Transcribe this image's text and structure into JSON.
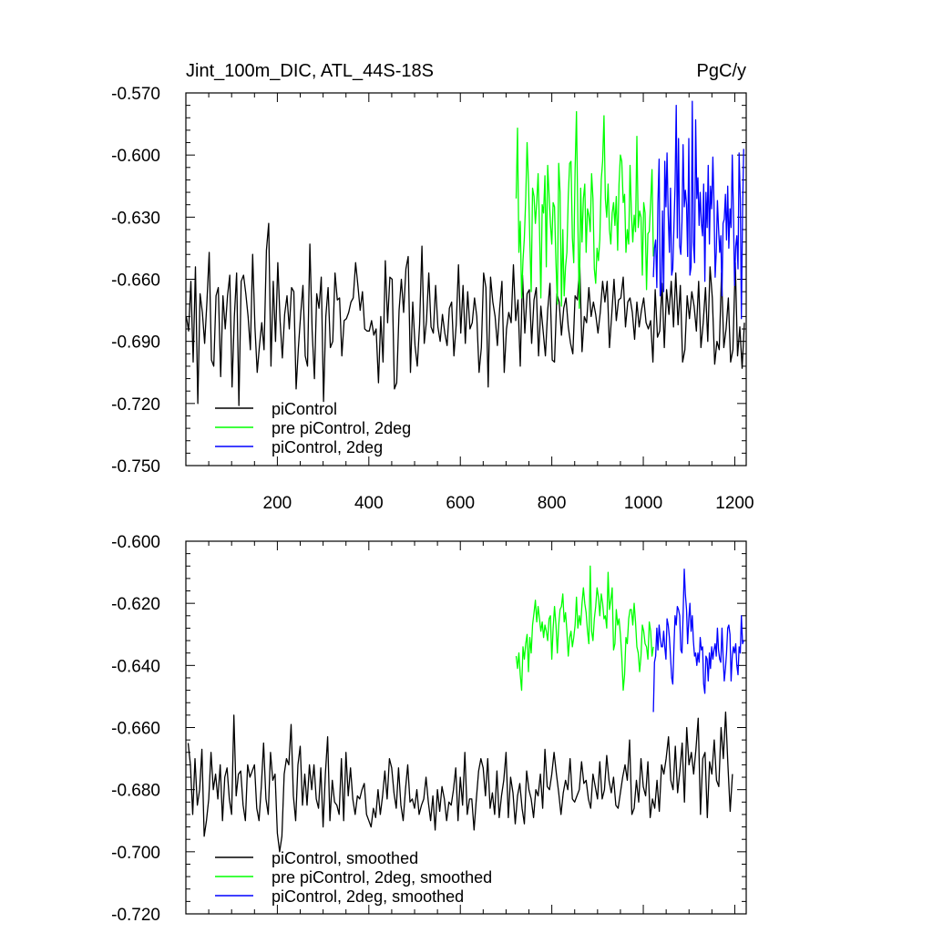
{
  "header": {
    "title": "Jint_100m_DIC, ATL_44S-18S",
    "units": "PgC/y"
  },
  "chart_data": [
    {
      "type": "line",
      "title": "Jint_100m_DIC, ATL_44S-18S",
      "units": "PgC/y",
      "xlim": [
        0,
        1225
      ],
      "ylim": [
        -0.75,
        -0.57
      ],
      "xticks": [
        200,
        400,
        600,
        800,
        1000,
        1200
      ],
      "xtick_labels": [
        "200",
        "400",
        "600",
        "800",
        "1000",
        "1200"
      ],
      "yticks": [
        -0.75,
        -0.72,
        -0.69,
        -0.66,
        -0.63,
        -0.6,
        -0.57
      ],
      "ytick_labels": [
        "-0.750",
        "-0.720",
        "-0.690",
        "-0.660",
        "-0.630",
        "-0.600",
        "-0.570"
      ],
      "legend_position": "bottom-left",
      "legend": [
        "piControl",
        "pre piControl, 2deg",
        "piControl, 2deg"
      ],
      "series": [
        {
          "name": "piControl",
          "color": "#000000",
          "x_start": 1,
          "x_step": 5,
          "values": [
            -0.678,
            -0.685,
            -0.661,
            -0.7,
            -0.654,
            -0.72,
            -0.667,
            -0.676,
            -0.691,
            -0.671,
            -0.647,
            -0.699,
            -0.702,
            -0.668,
            -0.664,
            -0.707,
            -0.668,
            -0.684,
            -0.668,
            -0.658,
            -0.712,
            -0.678,
            -0.657,
            -0.721,
            -0.661,
            -0.658,
            -0.667,
            -0.678,
            -0.694,
            -0.648,
            -0.683,
            -0.705,
            -0.692,
            -0.681,
            -0.694,
            -0.646,
            -0.633,
            -0.702,
            -0.661,
            -0.69,
            -0.652,
            -0.68,
            -0.698,
            -0.677,
            -0.668,
            -0.684,
            -0.664,
            -0.666,
            -0.713,
            -0.693,
            -0.677,
            -0.663,
            -0.697,
            -0.702,
            -0.643,
            -0.685,
            -0.708,
            -0.667,
            -0.674,
            -0.659,
            -0.719,
            -0.678,
            -0.664,
            -0.693,
            -0.69,
            -0.657,
            -0.67,
            -0.669,
            -0.697,
            -0.68,
            -0.679,
            -0.676,
            -0.671,
            -0.669,
            -0.652,
            -0.663,
            -0.675,
            -0.666,
            -0.684,
            -0.685,
            -0.685,
            -0.68,
            -0.687,
            -0.684,
            -0.71,
            -0.678,
            -0.7,
            -0.651,
            -0.681,
            -0.659,
            -0.66,
            -0.713,
            -0.71,
            -0.675,
            -0.66,
            -0.676,
            -0.655,
            -0.649,
            -0.705,
            -0.671,
            -0.692,
            -0.702,
            -0.682,
            -0.644,
            -0.691,
            -0.68,
            -0.657,
            -0.683,
            -0.686,
            -0.663,
            -0.683,
            -0.69,
            -0.677,
            -0.686,
            -0.692,
            -0.674,
            -0.671,
            -0.697,
            -0.682,
            -0.653,
            -0.686,
            -0.663,
            -0.691,
            -0.666,
            -0.684,
            -0.681,
            -0.669,
            -0.678,
            -0.705,
            -0.693,
            -0.657,
            -0.664,
            -0.712,
            -0.659,
            -0.671,
            -0.678,
            -0.692,
            -0.674,
            -0.661,
            -0.705,
            -0.684,
            -0.676,
            -0.681,
            -0.653,
            -0.68,
            -0.67,
            -0.702,
            -0.658,
            -0.686,
            -0.667,
            -0.665,
            -0.691,
            -0.67,
            -0.664,
            -0.697,
            -0.673,
            -0.685,
            -0.697,
            -0.675,
            -0.662,
            -0.699,
            -0.7,
            -0.667,
            -0.671,
            -0.687,
            -0.674,
            -0.669,
            -0.683,
            -0.691,
            -0.696,
            -0.668,
            -0.67,
            -0.653,
            -0.695,
            -0.678,
            -0.681,
            -0.664,
            -0.678,
            -0.671,
            -0.677,
            -0.686,
            -0.676,
            -0.661,
            -0.671,
            -0.661,
            -0.693,
            -0.677,
            -0.66,
            -0.68,
            -0.67,
            -0.669,
            -0.659,
            -0.683,
            -0.671,
            -0.669,
            -0.676,
            -0.689,
            -0.671,
            -0.683,
            -0.675,
            -0.669,
            -0.681,
            -0.684,
            -0.68,
            -0.7,
            -0.665,
            -0.688,
            -0.685,
            -0.662,
            -0.693,
            -0.665,
            -0.677,
            -0.661,
            -0.683,
            -0.657,
            -0.682,
            -0.663,
            -0.7,
            -0.694,
            -0.668,
            -0.679,
            -0.666,
            -0.673,
            -0.685,
            -0.661,
            -0.693,
            -0.681,
            -0.664,
            -0.69,
            -0.654,
            -0.669,
            -0.701,
            -0.69,
            -0.694,
            -0.657,
            -0.693,
            -0.684,
            -0.669,
            -0.7,
            -0.694,
            -0.652,
            -0.697,
            -0.683,
            -0.703,
            -0.681
          ]
        },
        {
          "name": "pre piControl, 2deg",
          "color": "#00ff00",
          "x_start": 722,
          "x_step": 3,
          "values": [
            -0.621,
            -0.587,
            -0.647,
            -0.632,
            -0.669,
            -0.651,
            -0.64,
            -0.621,
            -0.594,
            -0.613,
            -0.641,
            -0.666,
            -0.616,
            -0.62,
            -0.633,
            -0.623,
            -0.609,
            -0.635,
            -0.669,
            -0.624,
            -0.628,
            -0.61,
            -0.654,
            -0.605,
            -0.619,
            -0.633,
            -0.643,
            -0.623,
            -0.625,
            -0.652,
            -0.672,
            -0.604,
            -0.618,
            -0.673,
            -0.636,
            -0.668,
            -0.654,
            -0.647,
            -0.62,
            -0.604,
            -0.603,
            -0.64,
            -0.652,
            -0.607,
            -0.579,
            -0.631,
            -0.674,
            -0.616,
            -0.642,
            -0.621,
            -0.614,
            -0.647,
            -0.626,
            -0.629,
            -0.637,
            -0.609,
            -0.621,
            -0.655,
            -0.662,
            -0.645,
            -0.651,
            -0.641,
            -0.612,
            -0.603,
            -0.581,
            -0.621,
            -0.63,
            -0.614,
            -0.636,
            -0.643,
            -0.628,
            -0.623,
            -0.634,
            -0.62,
            -0.646,
            -0.614,
            -0.6,
            -0.603,
            -0.623,
            -0.619,
            -0.647,
            -0.636,
            -0.643,
            -0.605,
            -0.628,
            -0.642,
            -0.629,
            -0.637,
            -0.591,
            -0.635,
            -0.627,
            -0.63,
            -0.658,
            -0.623,
            -0.628,
            -0.665,
            -0.638,
            -0.637,
            -0.623,
            -0.607,
            -0.649
          ]
        },
        {
          "name": "piControl, 2deg",
          "color": "#0000ff",
          "x_start": 1022,
          "x_step": 2.5,
          "values": [
            -0.659,
            -0.645,
            -0.641,
            -0.664,
            -0.623,
            -0.602,
            -0.668,
            -0.665,
            -0.627,
            -0.666,
            -0.603,
            -0.625,
            -0.599,
            -0.629,
            -0.647,
            -0.616,
            -0.658,
            -0.655,
            -0.634,
            -0.615,
            -0.576,
            -0.64,
            -0.592,
            -0.644,
            -0.648,
            -0.632,
            -0.595,
            -0.625,
            -0.617,
            -0.624,
            -0.649,
            -0.592,
            -0.658,
            -0.654,
            -0.574,
            -0.642,
            -0.652,
            -0.583,
            -0.621,
            -0.611,
            -0.634,
            -0.618,
            -0.633,
            -0.639,
            -0.614,
            -0.661,
            -0.618,
            -0.635,
            -0.605,
            -0.643,
            -0.615,
            -0.626,
            -0.601,
            -0.623,
            -0.659,
            -0.647,
            -0.622,
            -0.635,
            -0.647,
            -0.639,
            -0.668,
            -0.633,
            -0.631,
            -0.619,
            -0.641,
            -0.615,
            -0.645,
            -0.626,
            -0.635,
            -0.6,
            -0.626,
            -0.663,
            -0.644,
            -0.639,
            -0.655,
            -0.599,
            -0.621,
            -0.679,
            -0.627,
            -0.597
          ]
        }
      ]
    },
    {
      "type": "line",
      "xlim": [
        0,
        1225
      ],
      "ylim": [
        -0.72,
        -0.6
      ],
      "xticks": [
        200,
        400,
        600,
        800,
        1000,
        1200
      ],
      "yticks": [
        -0.72,
        -0.7,
        -0.68,
        -0.66,
        -0.64,
        -0.62,
        -0.6
      ],
      "ytick_labels": [
        "-0.720",
        "-0.700",
        "-0.680",
        "-0.660",
        "-0.640",
        "-0.620",
        "-0.600"
      ],
      "legend_position": "bottom-left",
      "legend": [
        "piControl, smoothed",
        "pre piControl, 2deg, smoothed",
        "piControl, 2deg, smoothed"
      ],
      "series": [
        {
          "name": "piControl, smoothed",
          "color": "#000000",
          "x_start": 5,
          "x_step": 5,
          "values": [
            -0.665,
            -0.672,
            -0.688,
            -0.67,
            -0.685,
            -0.68,
            -0.667,
            -0.695,
            -0.69,
            -0.683,
            -0.668,
            -0.68,
            -0.675,
            -0.683,
            -0.672,
            -0.69,
            -0.676,
            -0.673,
            -0.683,
            -0.688,
            -0.656,
            -0.682,
            -0.675,
            -0.674,
            -0.685,
            -0.69,
            -0.672,
            -0.676,
            -0.674,
            -0.672,
            -0.686,
            -0.69,
            -0.679,
            -0.665,
            -0.683,
            -0.688,
            -0.668,
            -0.677,
            -0.675,
            -0.694,
            -0.7,
            -0.695,
            -0.675,
            -0.67,
            -0.672,
            -0.659,
            -0.682,
            -0.69,
            -0.672,
            -0.666,
            -0.685,
            -0.675,
            -0.685,
            -0.672,
            -0.68,
            -0.672,
            -0.683,
            -0.686,
            -0.673,
            -0.692,
            -0.675,
            -0.663,
            -0.69,
            -0.677,
            -0.684,
            -0.685,
            -0.688,
            -0.67,
            -0.69,
            -0.668,
            -0.682,
            -0.673,
            -0.683,
            -0.688,
            -0.682,
            -0.683,
            -0.68,
            -0.678,
            -0.688,
            -0.69,
            -0.692,
            -0.686,
            -0.689,
            -0.68,
            -0.688,
            -0.682,
            -0.674,
            -0.683,
            -0.67,
            -0.673,
            -0.681,
            -0.686,
            -0.673,
            -0.685,
            -0.69,
            -0.68,
            -0.672,
            -0.684,
            -0.683,
            -0.686,
            -0.68,
            -0.688,
            -0.685,
            -0.683,
            -0.676,
            -0.684,
            -0.69,
            -0.682,
            -0.693,
            -0.68,
            -0.687,
            -0.679,
            -0.683,
            -0.69,
            -0.684,
            -0.685,
            -0.68,
            -0.673,
            -0.69,
            -0.676,
            -0.685,
            -0.668,
            -0.688,
            -0.683,
            -0.683,
            -0.693,
            -0.683,
            -0.674,
            -0.67,
            -0.673,
            -0.682,
            -0.67,
            -0.686,
            -0.681,
            -0.688,
            -0.674,
            -0.689,
            -0.682,
            -0.677,
            -0.668,
            -0.689,
            -0.676,
            -0.681,
            -0.691,
            -0.682,
            -0.678,
            -0.686,
            -0.691,
            -0.674,
            -0.68,
            -0.683,
            -0.689,
            -0.68,
            -0.682,
            -0.675,
            -0.686,
            -0.667,
            -0.679,
            -0.68,
            -0.675,
            -0.668,
            -0.675,
            -0.681,
            -0.688,
            -0.681,
            -0.677,
            -0.68,
            -0.67,
            -0.683,
            -0.684,
            -0.682,
            -0.68,
            -0.671,
            -0.678,
            -0.677,
            -0.683,
            -0.686,
            -0.675,
            -0.679,
            -0.683,
            -0.671,
            -0.683,
            -0.68,
            -0.669,
            -0.677,
            -0.681,
            -0.676,
            -0.685,
            -0.686,
            -0.681,
            -0.676,
            -0.672,
            -0.677,
            -0.664,
            -0.688,
            -0.686,
            -0.677,
            -0.684,
            -0.67,
            -0.679,
            -0.682,
            -0.671,
            -0.689,
            -0.683,
            -0.686,
            -0.677,
            -0.687,
            -0.672,
            -0.675,
            -0.67,
            -0.663,
            -0.677,
            -0.68,
            -0.666,
            -0.681,
            -0.674,
            -0.665,
            -0.684,
            -0.66,
            -0.672,
            -0.668,
            -0.675,
            -0.667,
            -0.657,
            -0.688,
            -0.67,
            -0.668,
            -0.689,
            -0.671,
            -0.675,
            -0.664,
            -0.677,
            -0.679,
            -0.66,
            -0.67,
            -0.655,
            -0.672,
            -0.687,
            -0.675
          ]
        },
        {
          "name": "pre piControl, 2deg, smoothed",
          "color": "#00ff00",
          "x_start": 722,
          "x_step": 3,
          "values": [
            -0.637,
            -0.641,
            -0.636,
            -0.643,
            -0.648,
            -0.634,
            -0.638,
            -0.633,
            -0.63,
            -0.642,
            -0.631,
            -0.636,
            -0.627,
            -0.623,
            -0.619,
            -0.626,
            -0.621,
            -0.625,
            -0.629,
            -0.626,
            -0.631,
            -0.627,
            -0.629,
            -0.632,
            -0.625,
            -0.624,
            -0.638,
            -0.628,
            -0.621,
            -0.627,
            -0.636,
            -0.627,
            -0.622,
            -0.621,
            -0.617,
            -0.626,
            -0.623,
            -0.629,
            -0.637,
            -0.631,
            -0.629,
            -0.634,
            -0.631,
            -0.627,
            -0.618,
            -0.628,
            -0.624,
            -0.627,
            -0.62,
            -0.615,
            -0.62,
            -0.623,
            -0.629,
            -0.633,
            -0.608,
            -0.629,
            -0.632,
            -0.625,
            -0.621,
            -0.615,
            -0.618,
            -0.624,
            -0.617,
            -0.62,
            -0.625,
            -0.624,
            -0.628,
            -0.61,
            -0.622,
            -0.619,
            -0.615,
            -0.635,
            -0.633,
            -0.622,
            -0.627,
            -0.625,
            -0.63,
            -0.637,
            -0.648,
            -0.643,
            -0.631,
            -0.633,
            -0.625,
            -0.622,
            -0.622,
            -0.627,
            -0.62,
            -0.626,
            -0.634,
            -0.636,
            -0.642,
            -0.637,
            -0.627,
            -0.629,
            -0.633,
            -0.634,
            -0.638,
            -0.626,
            -0.629,
            -0.637,
            -0.634
          ]
        },
        {
          "name": "piControl, 2deg, smoothed",
          "color": "#0000ff",
          "x_start": 1022,
          "x_step": 2.5,
          "values": [
            -0.655,
            -0.639,
            -0.637,
            -0.628,
            -0.635,
            -0.627,
            -0.631,
            -0.634,
            -0.634,
            -0.629,
            -0.634,
            -0.638,
            -0.625,
            -0.627,
            -0.631,
            -0.637,
            -0.644,
            -0.646,
            -0.634,
            -0.624,
            -0.627,
            -0.621,
            -0.622,
            -0.624,
            -0.635,
            -0.636,
            -0.624,
            -0.609,
            -0.617,
            -0.622,
            -0.633,
            -0.625,
            -0.62,
            -0.629,
            -0.624,
            -0.632,
            -0.637,
            -0.636,
            -0.64,
            -0.636,
            -0.639,
            -0.631,
            -0.635,
            -0.634,
            -0.646,
            -0.649,
            -0.637,
            -0.638,
            -0.645,
            -0.636,
            -0.641,
            -0.634,
            -0.638,
            -0.635,
            -0.633,
            -0.637,
            -0.628,
            -0.635,
            -0.638,
            -0.639,
            -0.628,
            -0.637,
            -0.645,
            -0.641,
            -0.636,
            -0.628,
            -0.627,
            -0.63,
            -0.645,
            -0.637,
            -0.634,
            -0.636,
            -0.633,
            -0.64,
            -0.643,
            -0.634,
            -0.636,
            -0.624,
            -0.633,
            -0.632
          ]
        }
      ]
    }
  ]
}
